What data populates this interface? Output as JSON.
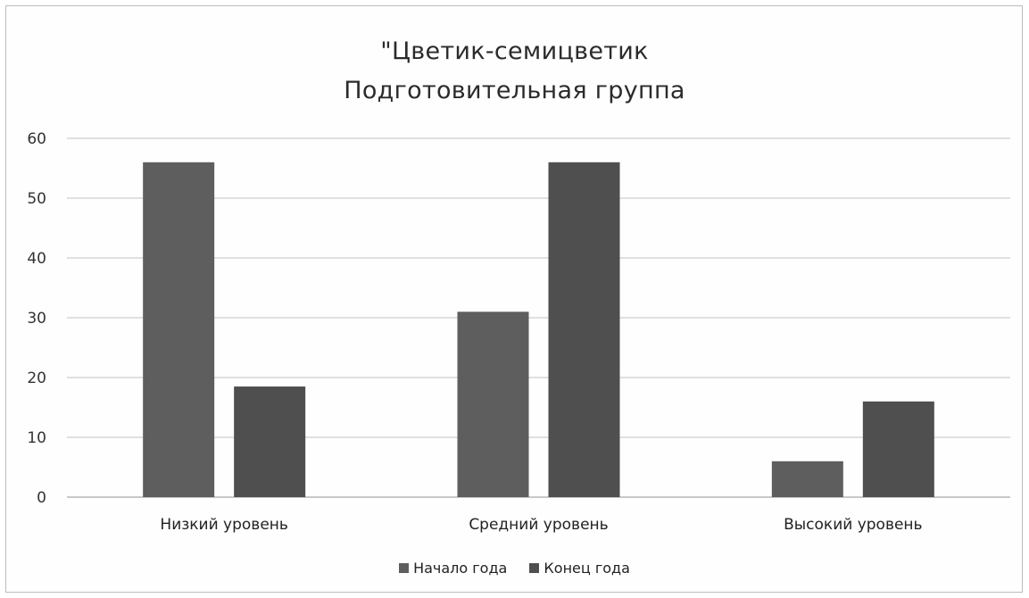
{
  "chart_data": {
    "type": "bar",
    "title": "\"Цветик-семицветик",
    "subtitle": "Подготовительная группа",
    "categories": [
      "Низкий уровень",
      "Средний уровень",
      "Высокий уровень"
    ],
    "series": [
      {
        "name": "Начало года",
        "values": [
          56,
          31,
          6
        ],
        "color": "#5e5e5e"
      },
      {
        "name": "Конец года",
        "values": [
          18.5,
          56,
          16
        ],
        "color": "#4f4f4f"
      }
    ],
    "yticks": [
      "0",
      "10",
      "20",
      "30",
      "40",
      "50",
      "60"
    ],
    "ylim": [
      0,
      60
    ],
    "grid": true,
    "legend_position": "bottom"
  }
}
